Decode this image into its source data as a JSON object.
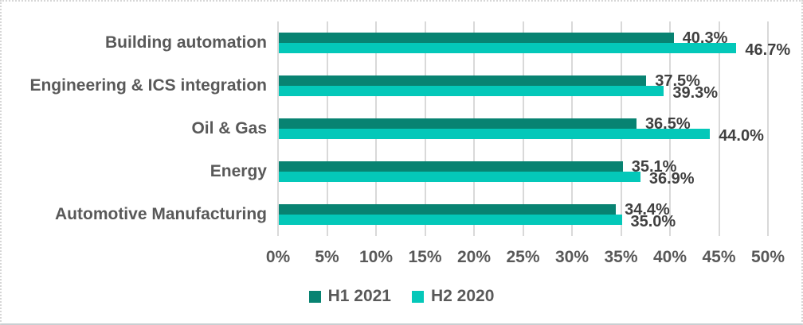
{
  "chart_data": {
    "type": "bar",
    "orientation": "horizontal",
    "title": "",
    "xlabel": "",
    "ylabel": "",
    "categories": [
      "Building automation",
      "Engineering & ICS integration",
      "Oil & Gas",
      "Energy",
      "Automotive Manufacturing"
    ],
    "series": [
      {
        "name": "H1 2021",
        "color": "#088372",
        "values": [
          40.3,
          37.5,
          36.5,
          35.1,
          34.4
        ],
        "labels": [
          "40.3%",
          "37.5%",
          "36.5%",
          "35.1%",
          "34.4%"
        ]
      },
      {
        "name": "H2 2020",
        "color": "#04c8b9",
        "values": [
          46.7,
          39.3,
          44.0,
          36.9,
          35.0
        ],
        "labels": [
          "46.7%",
          "39.3%",
          "44.0%",
          "36.9%",
          "35.0%"
        ]
      }
    ],
    "x_axis": {
      "min": 0,
      "max": 50,
      "step": 5,
      "tick_labels": [
        "0%",
        "5%",
        "10%",
        "15%",
        "20%",
        "25%",
        "30%",
        "35%",
        "40%",
        "45%",
        "50%"
      ]
    },
    "grid": "vertical",
    "legend_position": "bottom",
    "colors": {
      "gridline": "#d9d9d9",
      "category_text": "#595959",
      "tick_text": "#595959",
      "value_label_text": "#404040",
      "background": "#ffffff"
    }
  }
}
